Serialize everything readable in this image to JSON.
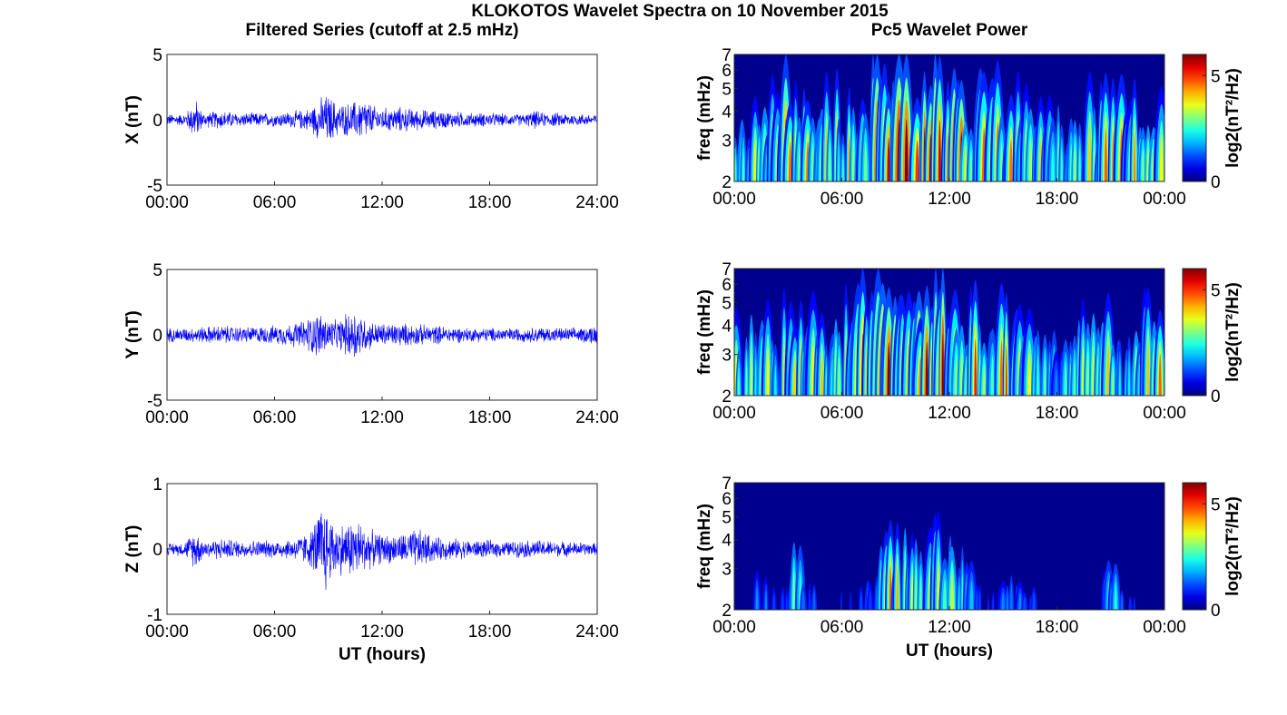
{
  "figure": {
    "title": "KLOKOTOS Wavelet Spectra on 10 November 2015",
    "left_column_title": "Filtered Series (cutoff at 2.5 mHz)",
    "right_column_title": "Pc5 Wavelet Power",
    "xlabel": "UT (hours)"
  },
  "chart_data": [
    {
      "type": "line",
      "panel": "X",
      "ylabel": "X (nT)",
      "xlim": [
        0,
        24
      ],
      "ylim": [
        -5,
        5
      ],
      "xticks": [
        "00:00",
        "06:00",
        "12:00",
        "18:00",
        "24:00"
      ],
      "yticks": [
        "-5",
        "0",
        "5"
      ],
      "series_color": "#0000ff",
      "envelope": {
        "x": [
          0,
          1,
          1.6,
          2,
          3,
          4,
          5,
          6,
          7,
          8,
          8.5,
          9,
          9.5,
          10,
          10.5,
          11,
          11.5,
          12,
          13,
          14,
          15,
          16,
          17,
          18,
          19,
          20,
          20.5,
          21,
          22,
          23,
          24
        ],
        "amplitude": [
          0.5,
          0.5,
          1.8,
          0.6,
          0.8,
          0.6,
          0.6,
          0.6,
          0.7,
          1.0,
          1.8,
          2.2,
          1.4,
          1.4,
          1.6,
          1.9,
          1.2,
          1.0,
          1.1,
          0.9,
          0.8,
          0.7,
          0.6,
          0.6,
          0.5,
          0.5,
          0.8,
          0.6,
          0.6,
          0.5,
          0.5
        ]
      }
    },
    {
      "type": "line",
      "panel": "Y",
      "ylabel": "Y (nT)",
      "xlim": [
        0,
        24
      ],
      "ylim": [
        -5,
        5
      ],
      "xticks": [
        "00:00",
        "06:00",
        "12:00",
        "18:00",
        "24:00"
      ],
      "yticks": [
        "-5",
        "0",
        "5"
      ],
      "series_color": "#0000ff",
      "envelope": {
        "x": [
          0,
          1,
          2,
          3,
          4,
          5,
          6,
          7,
          7.5,
          8,
          8.5,
          9,
          9.5,
          10,
          10.5,
          11,
          11.5,
          12,
          13,
          14,
          15,
          16,
          17,
          18,
          19,
          20,
          21,
          22,
          23,
          24
        ],
        "amplitude": [
          0.6,
          0.6,
          0.7,
          0.8,
          0.7,
          0.7,
          0.8,
          1.0,
          1.2,
          1.6,
          2.0,
          1.4,
          1.2,
          1.8,
          2.4,
          1.5,
          1.1,
          1.0,
          1.0,
          0.9,
          0.8,
          0.7,
          0.6,
          0.6,
          0.6,
          0.6,
          0.7,
          0.6,
          0.6,
          0.9
        ]
      }
    },
    {
      "type": "line",
      "panel": "Z",
      "ylabel": "Z (nT)",
      "xlim": [
        0,
        24
      ],
      "ylim": [
        -1,
        1
      ],
      "xticks": [
        "00:00",
        "06:00",
        "12:00",
        "18:00",
        "24:00"
      ],
      "yticks": [
        "-1",
        "0",
        "1"
      ],
      "series_color": "#0000ff",
      "envelope": {
        "x": [
          0,
          1,
          1.6,
          2,
          3,
          4,
          5,
          6,
          7,
          8,
          8.5,
          8.8,
          9,
          9.5,
          10,
          10.5,
          11,
          11.5,
          12,
          13,
          14,
          15,
          16,
          17,
          18,
          19,
          20,
          21,
          22,
          23,
          24
        ],
        "amplitude": [
          0.1,
          0.12,
          0.35,
          0.15,
          0.18,
          0.15,
          0.15,
          0.15,
          0.18,
          0.3,
          0.7,
          0.85,
          0.6,
          0.45,
          0.45,
          0.55,
          0.4,
          0.3,
          0.25,
          0.25,
          0.35,
          0.2,
          0.18,
          0.15,
          0.15,
          0.13,
          0.15,
          0.15,
          0.13,
          0.12,
          0.1
        ]
      }
    },
    {
      "type": "heatmap",
      "panel": "X",
      "ylabel": "freq (mHz)",
      "xlim": [
        0,
        24
      ],
      "ylim": [
        2,
        7
      ],
      "yscale": "log",
      "xticks": [
        "00:00",
        "06:00",
        "12:00",
        "18:00",
        "00:00"
      ],
      "yticks": [
        "2",
        "3",
        "4",
        "5",
        "6",
        "7"
      ],
      "colorbar": {
        "label": "log2(nT²/Hz)",
        "ticks": [
          "0",
          "5"
        ],
        "range": [
          0,
          6
        ],
        "colormap": "jet"
      },
      "activity": {
        "x": [
          0,
          1,
          2,
          3,
          4,
          5,
          6,
          7,
          8,
          9,
          10,
          11,
          12,
          13,
          14,
          15,
          16,
          17,
          18,
          19,
          20,
          21,
          22,
          23,
          24
        ],
        "level": [
          2.5,
          3.5,
          3.0,
          4.5,
          4.0,
          3.8,
          3.5,
          4.0,
          5.5,
          5.5,
          5.2,
          5.8,
          5.0,
          4.8,
          4.0,
          3.8,
          3.5,
          3.6,
          3.0,
          3.0,
          3.2,
          4.0,
          4.2,
          3.5,
          3.0
        ]
      }
    },
    {
      "type": "heatmap",
      "panel": "Y",
      "ylabel": "freq (mHz)",
      "xlim": [
        0,
        24
      ],
      "ylim": [
        2,
        7
      ],
      "yscale": "log",
      "xticks": [
        "00:00",
        "06:00",
        "12:00",
        "18:00",
        "00:00"
      ],
      "yticks": [
        "2",
        "3",
        "4",
        "5",
        "6",
        "7"
      ],
      "colorbar": {
        "label": "log2(nT²/Hz)",
        "ticks": [
          "0",
          "5"
        ],
        "range": [
          0,
          6
        ],
        "colormap": "jet"
      },
      "activity": {
        "x": [
          0,
          1,
          2,
          3,
          4,
          5,
          6,
          7,
          8,
          9,
          10,
          11,
          12,
          13,
          14,
          15,
          16,
          17,
          18,
          19,
          20,
          21,
          22,
          23,
          24
        ],
        "level": [
          3.0,
          3.5,
          3.2,
          3.8,
          4.2,
          3.8,
          4.0,
          4.5,
          5.5,
          5.5,
          5.2,
          5.8,
          5.2,
          4.5,
          3.5,
          4.2,
          4.5,
          2.5,
          2.0,
          2.5,
          3.5,
          3.5,
          3.0,
          3.5,
          4.0
        ]
      }
    },
    {
      "type": "heatmap",
      "panel": "Z",
      "ylabel": "freq (mHz)",
      "xlim": [
        0,
        24
      ],
      "ylim": [
        2,
        7
      ],
      "yscale": "log",
      "xticks": [
        "00:00",
        "06:00",
        "12:00",
        "18:00",
        "00:00"
      ],
      "yticks": [
        "2",
        "3",
        "4",
        "5",
        "6",
        "7"
      ],
      "colorbar": {
        "label": "log2(nT²/Hz)",
        "ticks": [
          "0",
          "5"
        ],
        "range": [
          0,
          6
        ],
        "colormap": "jet"
      },
      "activity": {
        "x": [
          0,
          1,
          1.5,
          2,
          3,
          3.5,
          4,
          5,
          6,
          7,
          8,
          8.5,
          9,
          9.5,
          10,
          10.5,
          11,
          11.5,
          12,
          12.5,
          13,
          14,
          15,
          16,
          17,
          18,
          19,
          20,
          20.5,
          21,
          22,
          23,
          24
        ],
        "level": [
          0.3,
          0.5,
          2.5,
          1.0,
          1.0,
          3.0,
          1.5,
          0.8,
          0.8,
          1.0,
          1.5,
          4.5,
          3.5,
          3.0,
          3.5,
          2.5,
          4.0,
          3.2,
          3.0,
          3.5,
          1.8,
          1.0,
          1.2,
          1.5,
          1.0,
          0.6,
          0.5,
          0.6,
          1.0,
          2.5,
          1.0,
          0.4,
          0.3
        ]
      }
    }
  ]
}
